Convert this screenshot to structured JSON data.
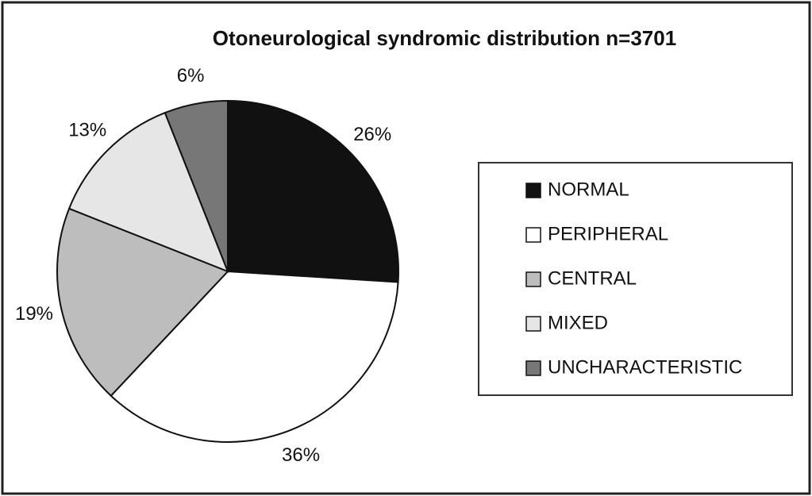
{
  "chart_data": {
    "type": "pie",
    "title": "Otoneurological syndromic distribution n=3701",
    "categories": [
      "NORMAL",
      "PERIPHERAL",
      "CENTRAL",
      "MIXED",
      "UNCHARACTERISTIC"
    ],
    "values": [
      26,
      36,
      19,
      13,
      6
    ],
    "value_labels": [
      "26%",
      "36%",
      "19%",
      "13%",
      "6%"
    ],
    "colors": [
      "#111111",
      "#ffffff",
      "#bdbdbd",
      "#e6e6e6",
      "#777777"
    ],
    "legend": "right"
  }
}
